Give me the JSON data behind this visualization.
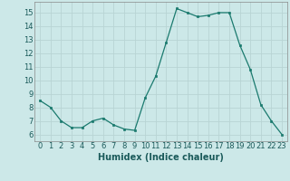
{
  "x": [
    0,
    1,
    2,
    3,
    4,
    5,
    6,
    7,
    8,
    9,
    10,
    11,
    12,
    13,
    14,
    15,
    16,
    17,
    18,
    19,
    20,
    21,
    22,
    23
  ],
  "y": [
    8.5,
    8.0,
    7.0,
    6.5,
    6.5,
    7.0,
    7.2,
    6.7,
    6.4,
    6.3,
    8.7,
    10.3,
    12.8,
    15.3,
    15.0,
    14.7,
    14.8,
    15.0,
    15.0,
    12.6,
    10.8,
    8.2,
    7.0,
    6.0
  ],
  "xlabel": "Humidex (Indice chaleur)",
  "xlim": [
    -0.5,
    23.5
  ],
  "ylim": [
    5.5,
    15.8
  ],
  "yticks": [
    6,
    7,
    8,
    9,
    10,
    11,
    12,
    13,
    14,
    15
  ],
  "xticks": [
    0,
    1,
    2,
    3,
    4,
    5,
    6,
    7,
    8,
    9,
    10,
    11,
    12,
    13,
    14,
    15,
    16,
    17,
    18,
    19,
    20,
    21,
    22,
    23
  ],
  "line_color": "#1a7a6e",
  "marker_color": "#1a7a6e",
  "bg_color": "#cce8e8",
  "grid_color": "#b8d4d4",
  "label_fontsize": 7,
  "tick_fontsize": 6
}
